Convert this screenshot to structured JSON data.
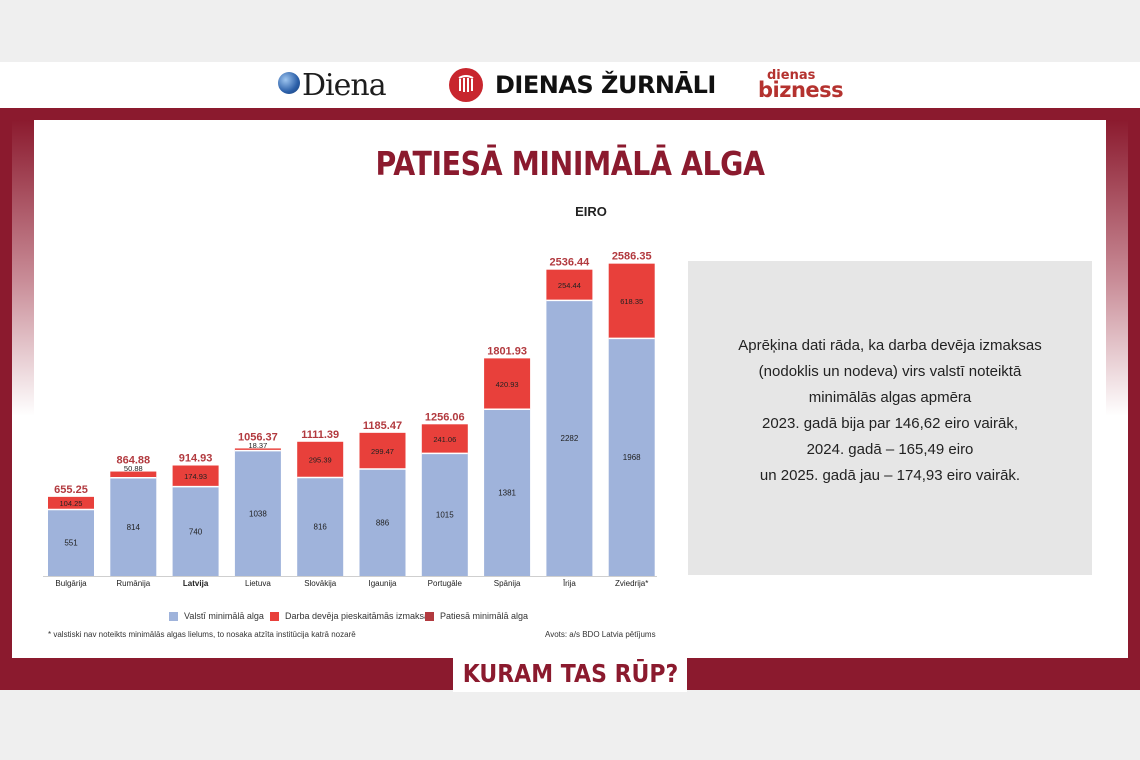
{
  "header": {
    "logo_diena": "Diena",
    "logo_zurnali": "DIENAS ŽURNĀLI",
    "logo_bizness_small": "dienas",
    "logo_bizness_big": "bizness"
  },
  "title": "PATIESĀ MINIMĀLĀ ALGA",
  "unit": "EIRO",
  "info_lines": [
    "Aprēķina dati rāda, ka darba devēja izmaksas",
    "(nodoklis un nodeva) virs valstī noteiktā",
    "minimālās algas apmēra",
    "2023. gadā bija par 146,62 eiro vairāk,",
    "2024. gadā – 165,49 eiro",
    "un 2025. gadā jau – 174,93 eiro vairāk."
  ],
  "footnote": "* valstiski nav noteikts minimālās algas lielums, to nosaka atzīta institūcija katrā nozarē",
  "source": "Avots: a/s BDO Latvia pētījums",
  "footer_title": "KURAM TAS RŪP?",
  "colors": {
    "brand": "#8b1a2e",
    "base": "#9fb3db",
    "employer": "#e8403b",
    "total_label": "#b23a3f"
  },
  "chart_data": {
    "type": "bar",
    "stacked": true,
    "categories": [
      "Bulgārija",
      "Rumānija",
      "Latvija",
      "Lietuva",
      "Slovākija",
      "Igaunija",
      "Portugāle",
      "Spānija",
      "Īrija",
      "Zviedrija*"
    ],
    "highlight_category": "Latvija",
    "series": [
      {
        "name": "Valstī minimālā alga",
        "values": [
          551,
          814,
          740,
          1038,
          816,
          886,
          1015,
          1381,
          2282,
          1968
        ],
        "labels": [
          "551",
          "814",
          "740",
          "1038",
          "816",
          "886",
          "1015",
          "1381",
          "2282",
          "1968"
        ]
      },
      {
        "name": "Darba devēja pieskaitāmās izmaksas",
        "values": [
          104.25,
          50.88,
          174.93,
          18.37,
          295.39,
          299.47,
          241.06,
          420.93,
          254.44,
          618.35
        ],
        "labels": [
          "104.25",
          "50.88",
          "174.93",
          "18.37",
          "295.39",
          "299.47",
          "241.06",
          "420.93",
          "254.44",
          "618.35"
        ]
      }
    ],
    "totals": {
      "name": "Patiesā minimālā alga",
      "values": [
        655.25,
        864.88,
        914.93,
        1056.37,
        1111.39,
        1185.47,
        1256.06,
        1801.93,
        2536.44,
        2586.35
      ],
      "labels": [
        "655.25",
        "864.88",
        "914.93",
        "1056.37",
        "1111.39",
        "1185.47",
        "1256.06",
        "1801.93",
        "2536.44",
        "2586.35"
      ]
    },
    "ylim": [
      0,
      2600
    ],
    "grid": false,
    "legend_position": "bottom"
  }
}
